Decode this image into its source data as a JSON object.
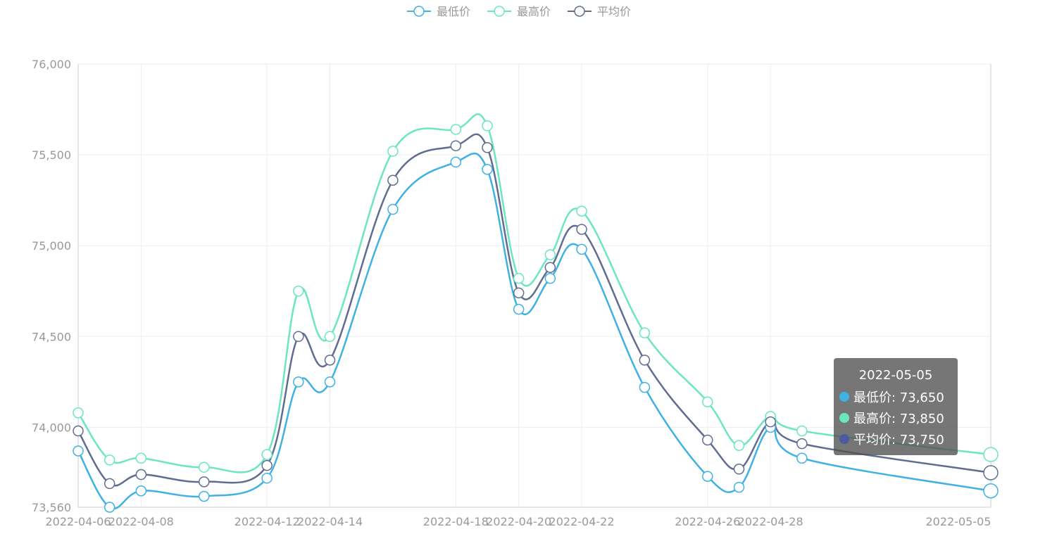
{
  "chart_data": {
    "type": "line",
    "title": "",
    "xlabel": "",
    "ylabel": "",
    "x": [
      "2022-04-06",
      "2022-04-07",
      "2022-04-08",
      "2022-04-10",
      "2022-04-12",
      "2022-04-13",
      "2022-04-14",
      "2022-04-16",
      "2022-04-18",
      "2022-04-19",
      "2022-04-20",
      "2022-04-21",
      "2022-04-22",
      "2022-04-24",
      "2022-04-26",
      "2022-04-27",
      "2022-04-28",
      "2022-04-29",
      "2022-05-05"
    ],
    "xtick_labels": [
      "2022-04-06",
      "2022-04-08",
      "2022-04-12",
      "2022-04-14",
      "2022-04-18",
      "2022-04-20",
      "2022-04-22",
      "2022-04-26",
      "2022-04-28",
      "2022-05-05"
    ],
    "ytick_labels": [
      "73,560",
      "74,000",
      "74,500",
      "75,000",
      "75,500",
      "76,000"
    ],
    "ytick_values": [
      73560,
      74000,
      74500,
      75000,
      75500,
      76000
    ],
    "ylim": [
      73560,
      76000
    ],
    "grid": true,
    "legend_position": "top-center",
    "series": [
      {
        "name": "最低价",
        "color": "#3fb1e3",
        "values": [
          73870,
          73560,
          73650,
          73620,
          73720,
          74250,
          74250,
          75200,
          75460,
          75420,
          74650,
          74820,
          74980,
          74220,
          73730,
          73670,
          74000,
          73830,
          73650
        ]
      },
      {
        "name": "最高价",
        "color": "#6be6c1",
        "values": [
          74080,
          73820,
          73830,
          73780,
          73850,
          74750,
          74500,
          75520,
          75640,
          75660,
          74820,
          74950,
          75190,
          74520,
          74140,
          73900,
          74060,
          73980,
          73850
        ]
      },
      {
        "name": "平均价",
        "color": "#626c91",
        "values": [
          73980,
          73690,
          73740,
          73700,
          73790,
          74500,
          74370,
          75360,
          75550,
          75540,
          74740,
          74880,
          75090,
          74370,
          73930,
          73770,
          74030,
          73910,
          73750
        ]
      }
    ],
    "tooltip": {
      "title": "2022-05-05",
      "rows": [
        {
          "label": "最低价: 73,650",
          "color": "#3fb1e3"
        },
        {
          "label": "最高价: 73,850",
          "color": "#6be6c1"
        },
        {
          "label": "平均价: 73,750",
          "color": "#4b5c9e"
        }
      ]
    }
  }
}
